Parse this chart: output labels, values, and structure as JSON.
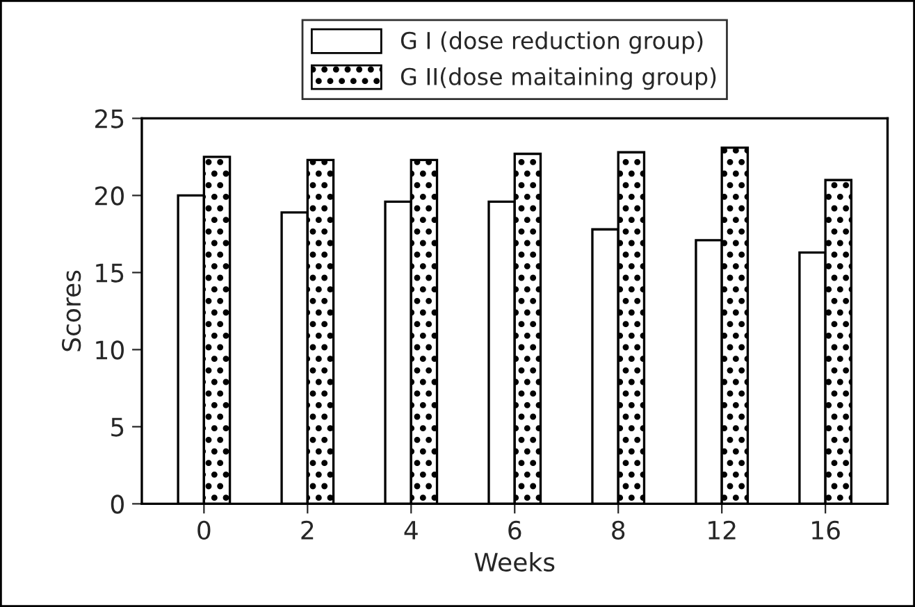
{
  "chart_data": {
    "type": "bar",
    "xlabel": "Weeks",
    "ylabel": "Scores",
    "categories": [
      "0",
      "2",
      "4",
      "6",
      "8",
      "12",
      "16"
    ],
    "series": [
      {
        "name": "G I (dose reduction group)",
        "color": "#ffffff",
        "values": [
          20.0,
          18.9,
          19.6,
          19.6,
          17.8,
          17.1,
          16.3
        ]
      },
      {
        "name": "G II(dose maitaining group)",
        "color": "#000000",
        "values": [
          22.5,
          22.3,
          22.3,
          22.7,
          22.8,
          23.1,
          21.0
        ]
      }
    ],
    "ylim": [
      0,
      25
    ],
    "yticks": [
      0,
      5,
      10,
      15,
      20,
      25
    ],
    "grid": false,
    "legend": "top"
  }
}
